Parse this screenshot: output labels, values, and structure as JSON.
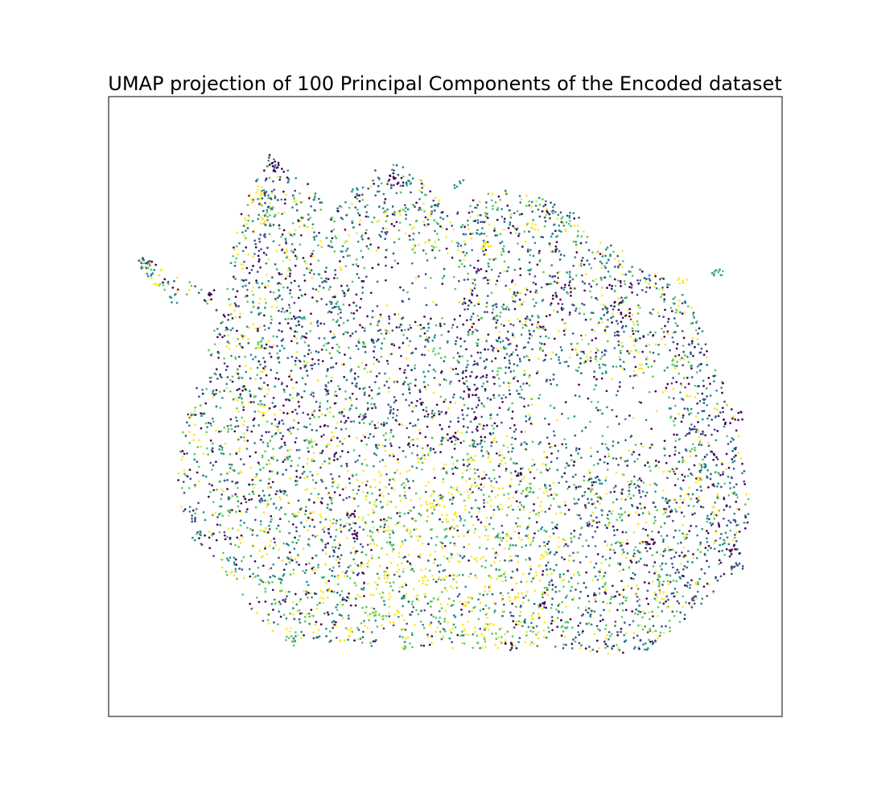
{
  "chart_data": {
    "type": "scatter",
    "title": "UMAP projection of 100 Principal Components of the Encoded dataset",
    "xlabel": "",
    "ylabel": "",
    "xticks": [],
    "yticks": [],
    "grid": false,
    "legend": "none",
    "xlim": [
      0,
      100
    ],
    "ylim": [
      0,
      100
    ],
    "colormap": [
      "#440154",
      "#3b528b",
      "#21908d",
      "#5dc963",
      "#fde725"
    ],
    "point_count_estimate": 6000,
    "series": [
      {
        "color_class": 0,
        "color": "#440154",
        "points": [
          [
            24.5,
            89.2
          ],
          [
            25.1,
            88.6
          ],
          [
            42.4,
            87.0
          ],
          [
            43.1,
            86.3
          ],
          [
            75.6,
            66.2
          ],
          [
            76.8,
            65.1
          ],
          [
            66.4,
            67.3
          ],
          [
            92.1,
            47.4
          ],
          [
            93.4,
            48.5
          ],
          [
            92.8,
            26.9
          ],
          [
            37.2,
            29.2
          ],
          [
            35.8,
            32.7
          ],
          [
            51.1,
            45.1
          ],
          [
            60.4,
            39.6
          ],
          [
            15.2,
            68.0
          ],
          [
            19.6,
            52.7
          ],
          [
            80.3,
            27.5
          ],
          [
            59.2,
            11.2
          ],
          [
            64.4,
            18.2
          ],
          [
            54.1,
            52.3
          ]
        ]
      },
      {
        "color_class": 1,
        "color": "#3b528b",
        "points": [
          [
            4.8,
            73.4
          ],
          [
            5.4,
            72.9
          ],
          [
            23.8,
            84.2
          ],
          [
            22.9,
            77.1
          ],
          [
            41.6,
            86.0
          ],
          [
            55.4,
            80.2
          ],
          [
            66.1,
            70.5
          ],
          [
            73.5,
            65.8
          ],
          [
            88.1,
            51.2
          ],
          [
            87.5,
            46.3
          ],
          [
            93.5,
            24.4
          ],
          [
            92.6,
            31.5
          ],
          [
            12.2,
            31.6
          ],
          [
            23.1,
            35.3
          ],
          [
            35.2,
            30.5
          ],
          [
            71.0,
            16.7
          ],
          [
            86.8,
            18.9
          ],
          [
            42.3,
            49.6
          ],
          [
            65.7,
            54.4
          ],
          [
            29.5,
            56.1
          ]
        ]
      },
      {
        "color_class": 2,
        "color": "#21908d",
        "points": [
          [
            6.1,
            71.4
          ],
          [
            9.7,
            67.4
          ],
          [
            44.6,
            86.8
          ],
          [
            52.0,
            86.0
          ],
          [
            55.2,
            78.3
          ],
          [
            66.5,
            78.6
          ],
          [
            73.8,
            75.0
          ],
          [
            90.2,
            71.6
          ],
          [
            88.5,
            40.2
          ],
          [
            91.6,
            28.4
          ],
          [
            13.2,
            29.2
          ],
          [
            18.4,
            25.3
          ],
          [
            25.2,
            22.3
          ],
          [
            44.1,
            18.6
          ],
          [
            54.7,
            43.6
          ],
          [
            72.5,
            38.2
          ],
          [
            80.1,
            11.1
          ],
          [
            73.2,
            56.1
          ],
          [
            33.7,
            66.5
          ],
          [
            58.0,
            60.1
          ]
        ]
      },
      {
        "color_class": 3,
        "color": "#5dc963",
        "points": [
          [
            5.6,
            72.5
          ],
          [
            8.3,
            69.2
          ],
          [
            24.3,
            81.4
          ],
          [
            57.4,
            82.6
          ],
          [
            68.1,
            79.8
          ],
          [
            90.5,
            72.0
          ],
          [
            84.2,
            57.2
          ],
          [
            86.8,
            43.5
          ],
          [
            76.1,
            32.5
          ],
          [
            62.1,
            36.4
          ],
          [
            41.7,
            28.1
          ],
          [
            39.5,
            16.2
          ],
          [
            27.1,
            12.2
          ],
          [
            58.4,
            22.4
          ],
          [
            67.6,
            14.5
          ],
          [
            82.3,
            21.5
          ],
          [
            48.9,
            58.6
          ],
          [
            30.3,
            43.6
          ],
          [
            17.8,
            46.6
          ],
          [
            44.5,
            11.5
          ]
        ]
      },
      {
        "color_class": 4,
        "color": "#fde725",
        "points": [
          [
            21.7,
            83.6
          ],
          [
            22.6,
            85.0
          ],
          [
            23.0,
            79.9
          ],
          [
            6.9,
            70.4
          ],
          [
            63.4,
            79.2
          ],
          [
            56.0,
            75.9
          ],
          [
            85.1,
            70.6
          ],
          [
            78.5,
            56.4
          ],
          [
            87.0,
            37.9
          ],
          [
            89.9,
            33.1
          ],
          [
            47.8,
            34.3
          ],
          [
            50.9,
            32.4
          ],
          [
            47.3,
            21.7
          ],
          [
            53.2,
            18.6
          ],
          [
            56.5,
            14.3
          ],
          [
            32.2,
            19.9
          ],
          [
            35.4,
            13.6
          ],
          [
            64.8,
            25.8
          ],
          [
            81.7,
            19.5
          ],
          [
            23.2,
            49.5
          ]
        ]
      }
    ]
  }
}
